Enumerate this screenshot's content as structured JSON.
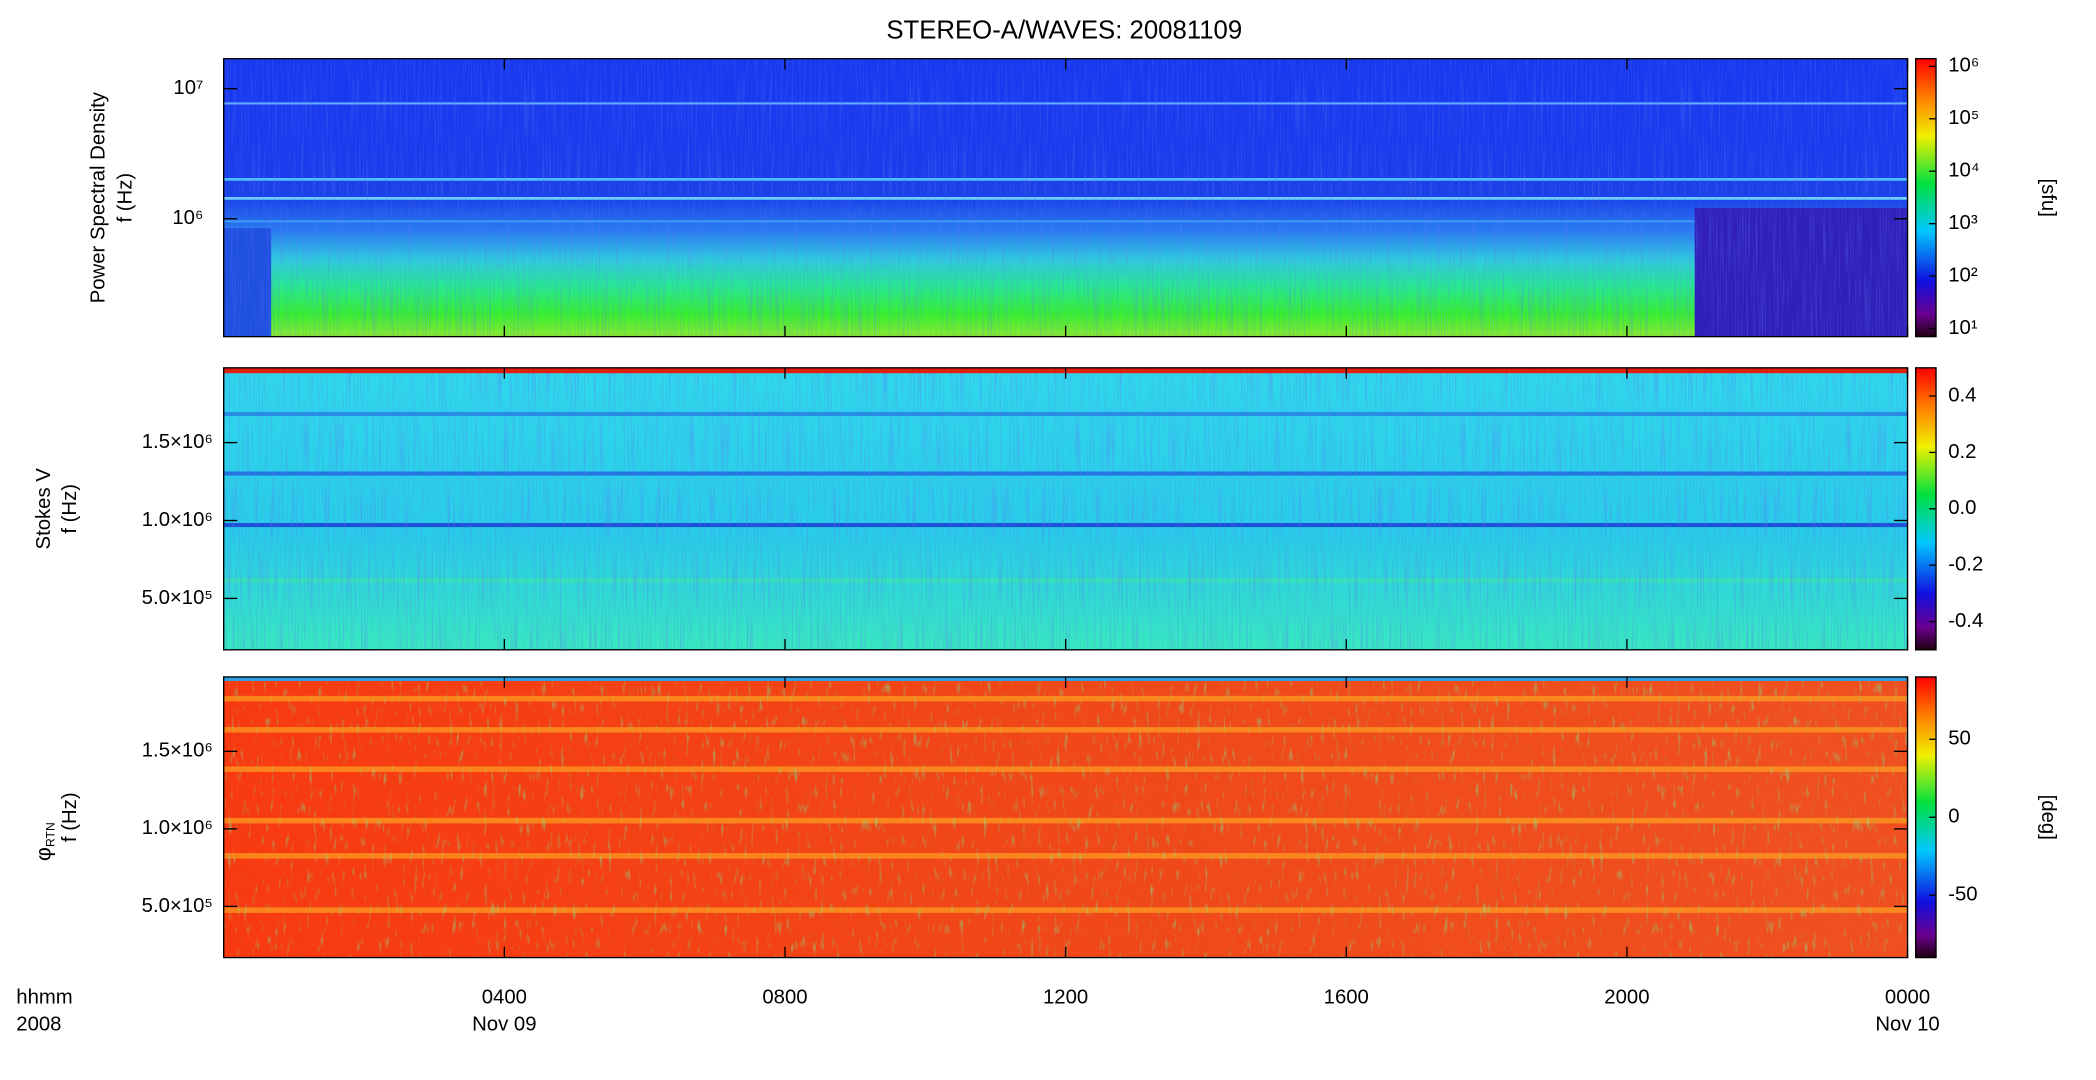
{
  "chart_data": [
    {
      "type": "heatmap",
      "title": "STEREO-A/WAVES: 20081109",
      "ylabel": [
        "Power Spectral Density",
        "f (Hz)"
      ],
      "ylog": true,
      "ylim": [
        124000,
        17000000
      ],
      "yticks": [
        {
          "value": 1000000,
          "label": "10⁶"
        },
        {
          "value": 10000000,
          "label": "10⁷"
        }
      ],
      "colorbar": {
        "log": true,
        "lim": [
          7,
          1400000
        ],
        "ticks": [
          {
            "value": 10,
            "label": "10¹"
          },
          {
            "value": 100,
            "label": "10²"
          },
          {
            "value": 1000,
            "label": "10³"
          },
          {
            "value": 10000,
            "label": "10⁴"
          },
          {
            "value": 100000,
            "label": "10⁵"
          },
          {
            "value": 1000000,
            "label": "10⁶"
          }
        ],
        "label": "[sfu]"
      }
    },
    {
      "type": "heatmap",
      "ylabel": [
        "Stokes V",
        "f (Hz)"
      ],
      "ylog": false,
      "ylim": [
        170000,
        1980000
      ],
      "yticks": [
        {
          "value": 500000,
          "label": "5.0×10⁵"
        },
        {
          "value": 1000000,
          "label": "1.0×10⁶"
        },
        {
          "value": 1500000,
          "label": "1.5×10⁶"
        }
      ],
      "colorbar": {
        "log": false,
        "lim": [
          -0.5,
          0.5
        ],
        "ticks": [
          -0.4,
          -0.2,
          {
            "value": 0,
            "label": "0.0"
          },
          0.2,
          0.4
        ]
      }
    },
    {
      "type": "heatmap",
      "ylabel_symbol": "φ",
      "ylabel_subscript": "RTN",
      "ylabel": [
        "f (Hz)"
      ],
      "ylog": false,
      "ylim": [
        170000,
        1980000
      ],
      "yticks": [
        {
          "value": 500000,
          "label": "5.0×10⁵"
        },
        {
          "value": 1000000,
          "label": "1.0×10⁶"
        },
        {
          "value": 1500000,
          "label": "1.5×10⁶"
        }
      ],
      "colorbar": {
        "log": false,
        "lim": [
          -90,
          90
        ],
        "ticks": [
          -50,
          0,
          50
        ],
        "label": "[deg]"
      },
      "xlim": [
        0,
        24
      ],
      "xticks": [
        {
          "value": 4,
          "label": "0400"
        },
        {
          "value": 8,
          "label": "0800"
        },
        {
          "value": 12,
          "label": "1200"
        },
        {
          "value": 16,
          "label": "1600"
        },
        {
          "value": 20,
          "label": "2000"
        },
        {
          "value": 24,
          "label": "0000"
        }
      ],
      "date_labels": [
        {
          "value": 4,
          "label": "Nov 09"
        },
        {
          "value": 24,
          "label": "Nov 10"
        }
      ],
      "x_row_labels": [
        "hhmm",
        "2008"
      ]
    }
  ]
}
